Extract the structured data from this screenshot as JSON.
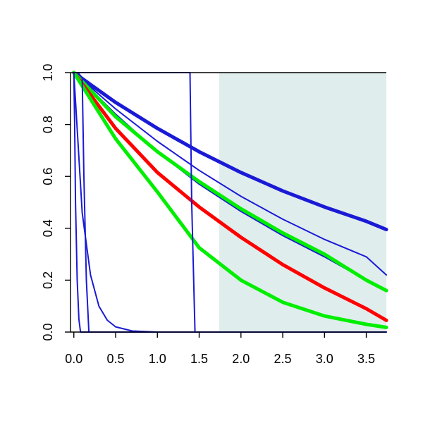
{
  "chart_data": {
    "type": "line",
    "title": "",
    "xlabel": "",
    "ylabel": "",
    "xlim": [
      -0.04,
      3.74
    ],
    "ylim": [
      0,
      1
    ],
    "x_ticks": [
      "0.0",
      "0.5",
      "1.0",
      "1.5",
      "2.0",
      "2.5",
      "3.0",
      "3.5"
    ],
    "x_tick_values": [
      0,
      0.5,
      1,
      1.5,
      2,
      2.5,
      3,
      3.5
    ],
    "y_ticks": [
      "0.0",
      "0.2",
      "0.4",
      "0.6",
      "0.8",
      "1.0"
    ],
    "y_tick_values": [
      0,
      0.2,
      0.4,
      0.6,
      0.8,
      1.0
    ],
    "grid": false,
    "legend": "none",
    "shaded_region": {
      "x_from": 1.74,
      "x_to": 3.74,
      "color": "#e0eded"
    },
    "colors": {
      "blue": "#1a1ad6",
      "red": "#ff0000",
      "green": "#00ee00",
      "axis": "#000000"
    },
    "series": [
      {
        "color": "#1a1ad6",
        "weight": "thick",
        "x": [
          0,
          0.5,
          1,
          1.5,
          2,
          2.5,
          3,
          3.5,
          3.74
        ],
        "y": [
          1.0,
          0.885,
          0.785,
          0.695,
          0.615,
          0.544,
          0.482,
          0.427,
          0.395
        ]
      },
      {
        "color": "#1a1ad6",
        "weight": "thin",
        "x": [
          0,
          0.5,
          1,
          1.5,
          2,
          2.5,
          3,
          3.5,
          3.74
        ],
        "y": [
          1.0,
          0.86,
          0.735,
          0.623,
          0.523,
          0.435,
          0.357,
          0.29,
          0.22
        ]
      },
      {
        "color": "#1a1ad6",
        "weight": "thin",
        "x": [
          0,
          0.5,
          1,
          1.5,
          2,
          2.5,
          3,
          3.5,
          3.74
        ],
        "y": [
          1.0,
          0.84,
          0.695,
          0.57,
          0.465,
          0.372,
          0.29,
          0.2,
          0.16
        ]
      },
      {
        "color": "#00ee00",
        "weight": "thick",
        "x": [
          0,
          0.5,
          1,
          1.5,
          2,
          2.5,
          3,
          3.5,
          3.74
        ],
        "y": [
          1.0,
          0.83,
          0.695,
          0.58,
          0.475,
          0.382,
          0.3,
          0.2,
          0.16
        ]
      },
      {
        "color": "#ff0000",
        "weight": "thick",
        "x": [
          0,
          0.5,
          1,
          1.5,
          2,
          2.5,
          3,
          3.5,
          3.74
        ],
        "y": [
          1.0,
          0.785,
          0.615,
          0.482,
          0.365,
          0.26,
          0.17,
          0.09,
          0.045
        ]
      },
      {
        "color": "#00ee00",
        "weight": "thick",
        "x": [
          0,
          0.5,
          1,
          1.5,
          2,
          2.5,
          3,
          3.5,
          3.74
        ],
        "y": [
          1.0,
          0.745,
          0.54,
          0.325,
          0.2,
          0.115,
          0.062,
          0.03,
          0.018
        ]
      },
      {
        "color": "#1a1ad6",
        "weight": "thin",
        "x": [
          0,
          0.01,
          1.39,
          1.41,
          1.45,
          3.74
        ],
        "y": [
          1.0,
          1.0,
          1.0,
          0.5,
          0.0,
          0.0
        ]
      },
      {
        "color": "#1a1ad6",
        "weight": "thin",
        "x": [
          0,
          0.1,
          0.2,
          0.3,
          0.4,
          0.5,
          0.7,
          1.0,
          3.74
        ],
        "y": [
          1.0,
          0.46,
          0.22,
          0.1,
          0.046,
          0.02,
          0.004,
          0.0,
          0.0
        ]
      },
      {
        "color": "#1a1ad6",
        "weight": "thin",
        "x": [
          0,
          0.05,
          0.1,
          0.12,
          0.15,
          0.18,
          3.74
        ],
        "y": [
          1.0,
          1.0,
          0.98,
          0.6,
          0.2,
          0.0,
          0.0
        ]
      },
      {
        "color": "#1a1ad6",
        "weight": "thin",
        "x": [
          0,
          0.01,
          0.02,
          0.04,
          0.06,
          0.08,
          3.74
        ],
        "y": [
          1.0,
          0.8,
          0.5,
          0.2,
          0.05,
          0.0,
          0.0
        ]
      }
    ]
  }
}
